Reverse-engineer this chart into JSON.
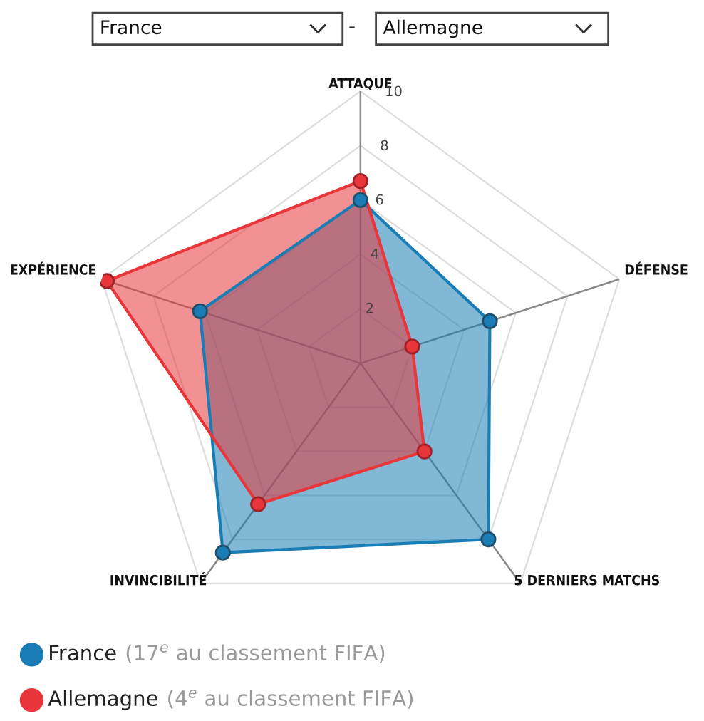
{
  "chart_data": {
    "type": "radar",
    "categories": [
      "ATTAQUE",
      "DÉFENSE",
      "5 DERNIERS MATCHS",
      "INVINCIBILITÉ",
      "EXPÉRIENCE"
    ],
    "series": [
      {
        "name": "France",
        "color": "#1a7db5",
        "values": [
          6,
          5,
          8,
          8.6,
          6.2
        ]
      },
      {
        "name": "Allemagne",
        "color": "#e8363b",
        "values": [
          6.7,
          2,
          4,
          6.4,
          9.8
        ]
      }
    ],
    "ylim": [
      0,
      10
    ],
    "yticks": [
      2,
      4,
      6,
      8,
      10
    ],
    "grid": true,
    "marker": "circle",
    "legend": "bottom left",
    "annotations": [
      "France",
      "-",
      "Allemagne",
      "(17$^{e}$ au classement FIFA)",
      "(4$^{e}$ au classement FIFA)"
    ]
  }
}
